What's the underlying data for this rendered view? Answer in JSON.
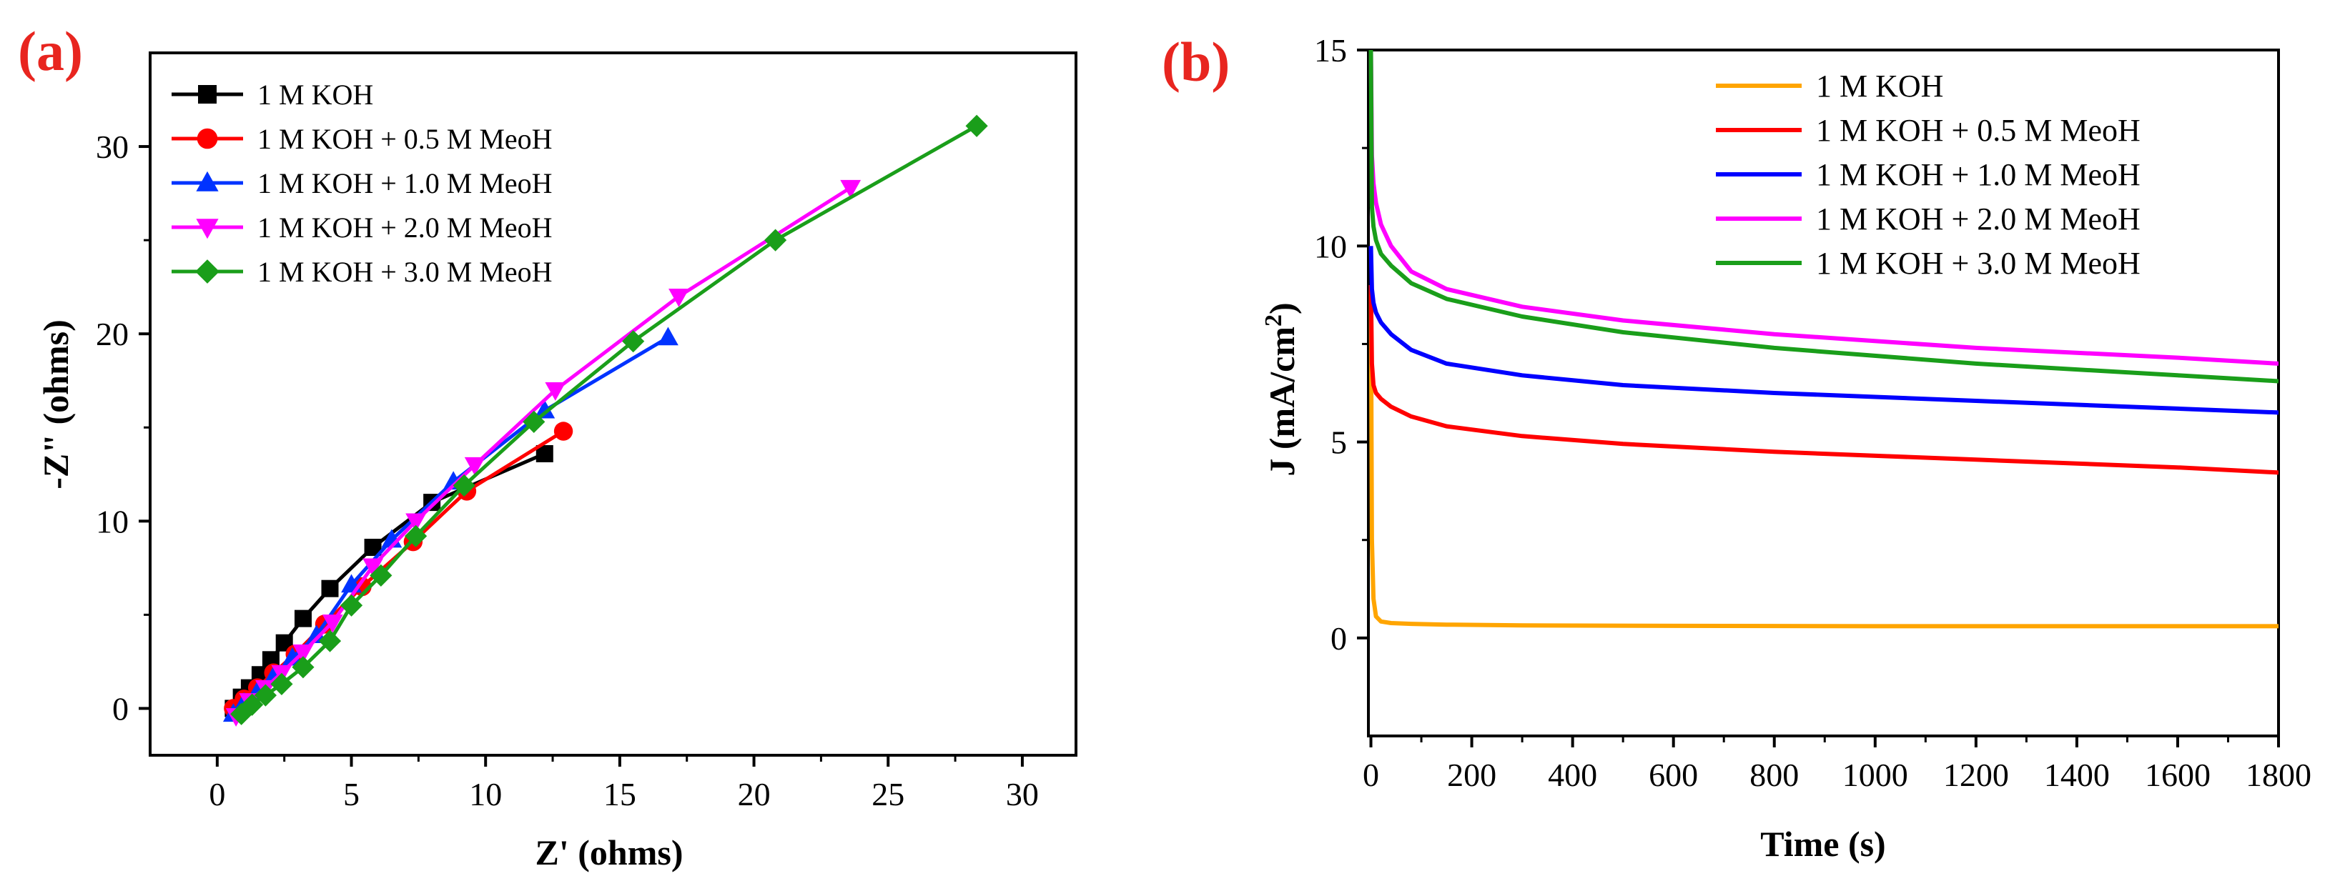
{
  "panels": [
    {
      "label": "(a)",
      "color": "#e8251f"
    },
    {
      "label": "(b)",
      "color": "#e8251f"
    }
  ],
  "chart_data": [
    {
      "type": "scatter",
      "title": "",
      "xlabel": "Z' (ohms)",
      "ylabel": "-Z\" (ohms)",
      "xlim": [
        -2.5,
        32
      ],
      "ylim": [
        -2.5,
        35
      ],
      "xticks": [
        0,
        5,
        10,
        15,
        20,
        25,
        30
      ],
      "yticks": [
        0,
        10,
        20,
        30
      ],
      "legend_position": "top-left",
      "series": [
        {
          "name": "1 M KOH",
          "color": "#000000",
          "marker": "square",
          "x": [
            0.6,
            0.9,
            1.2,
            1.6,
            2.0,
            2.5,
            3.2,
            4.2,
            5.8,
            8.0,
            12.2
          ],
          "y": [
            0.0,
            0.6,
            1.1,
            1.8,
            2.6,
            3.5,
            4.8,
            6.4,
            8.6,
            11.0,
            13.6
          ]
        },
        {
          "name": "1 M KOH + 0.5 M MeoH",
          "color": "#ff0000",
          "marker": "circle",
          "x": [
            0.6,
            1.0,
            1.5,
            2.1,
            2.9,
            4.0,
            5.4,
            7.3,
            9.3,
            12.9
          ],
          "y": [
            0.0,
            0.5,
            1.1,
            1.9,
            2.9,
            4.5,
            6.5,
            8.9,
            11.6,
            14.8
          ]
        },
        {
          "name": "1 M KOH + 1.0 M MeoH",
          "color": "#0033ff",
          "marker": "triangle-up",
          "x": [
            0.6,
            1.0,
            1.5,
            2.1,
            2.8,
            3.7,
            5.0,
            6.5,
            8.8,
            12.2,
            16.8
          ],
          "y": [
            -0.3,
            0.3,
            0.9,
            1.7,
            2.7,
            3.9,
            6.6,
            9.0,
            12.1,
            15.9,
            19.8
          ]
        },
        {
          "name": "1 M KOH + 2.0 M MeoH",
          "color": "#ff00ff",
          "marker": "triangle-down",
          "x": [
            0.7,
            1.2,
            1.8,
            2.4,
            3.2,
            4.3,
            5.8,
            7.4,
            9.6,
            12.6,
            17.2,
            23.6
          ],
          "y": [
            -0.4,
            0.4,
            1.1,
            1.9,
            3.0,
            4.6,
            7.6,
            10.0,
            13.0,
            17.0,
            22.0,
            27.8
          ]
        },
        {
          "name": "1 M KOH + 3.0 M MeoH",
          "color": "#1a9e1a",
          "marker": "diamond",
          "x": [
            0.9,
            1.3,
            1.8,
            2.4,
            3.2,
            4.2,
            5.0,
            6.1,
            7.4,
            9.2,
            11.8,
            15.5,
            20.8,
            28.3
          ],
          "y": [
            -0.3,
            0.2,
            0.7,
            1.3,
            2.2,
            3.6,
            5.5,
            7.1,
            9.2,
            11.9,
            15.3,
            19.6,
            25.0,
            31.1
          ]
        }
      ]
    },
    {
      "type": "line",
      "title": "",
      "xlabel": "Time (s)",
      "ylabel": "J (mA/cm",
      "ylabel_superscript": "2",
      "ylabel_suffix": ")",
      "xlim": [
        -5,
        1800
      ],
      "ylim": [
        -2.5,
        15
      ],
      "xticks": [
        0,
        200,
        400,
        600,
        800,
        1000,
        1200,
        1400,
        1600,
        1800
      ],
      "yticks": [
        0,
        5,
        10,
        15
      ],
      "legend_position": "top-right",
      "series": [
        {
          "name": "1 M KOH",
          "color": "#ffa500",
          "x": [
            0,
            2,
            5,
            10,
            20,
            40,
            80,
            150,
            300,
            600,
            1000,
            1400,
            1800
          ],
          "y": [
            9.0,
            2.5,
            1.0,
            0.55,
            0.42,
            0.38,
            0.36,
            0.34,
            0.32,
            0.31,
            0.3,
            0.3,
            0.3
          ]
        },
        {
          "name": "1 M KOH + 0.5 M MeoH",
          "color": "#ff0000",
          "x": [
            0,
            2,
            5,
            10,
            20,
            40,
            80,
            150,
            300,
            500,
            800,
            1200,
            1600,
            1800
          ],
          "y": [
            9.0,
            7.0,
            6.45,
            6.25,
            6.1,
            5.9,
            5.65,
            5.4,
            5.15,
            4.95,
            4.75,
            4.55,
            4.35,
            4.22
          ]
        },
        {
          "name": "1 M KOH + 1.0 M MeoH",
          "color": "#0000ff",
          "x": [
            0,
            2,
            5,
            10,
            20,
            40,
            80,
            150,
            300,
            500,
            800,
            1200,
            1600,
            1800
          ],
          "y": [
            10.0,
            8.9,
            8.55,
            8.3,
            8.05,
            7.75,
            7.35,
            7.0,
            6.7,
            6.45,
            6.25,
            6.05,
            5.85,
            5.75
          ]
        },
        {
          "name": "1 M KOH + 2.0 M MeoH",
          "color": "#ff00ff",
          "x": [
            0,
            2,
            5,
            10,
            20,
            40,
            80,
            150,
            300,
            500,
            800,
            1200,
            1600,
            1800
          ],
          "y": [
            15.0,
            12.3,
            11.6,
            11.1,
            10.55,
            10.0,
            9.35,
            8.9,
            8.45,
            8.1,
            7.75,
            7.4,
            7.15,
            7.0
          ]
        },
        {
          "name": "1 M KOH + 3.0 M MeoH",
          "color": "#1a9e1a",
          "x": [
            0,
            2,
            5,
            10,
            20,
            40,
            80,
            150,
            300,
            500,
            800,
            1200,
            1600,
            1800
          ],
          "y": [
            15.0,
            11.0,
            10.5,
            10.15,
            9.8,
            9.5,
            9.05,
            8.65,
            8.2,
            7.8,
            7.4,
            7.0,
            6.7,
            6.55
          ]
        }
      ]
    }
  ]
}
